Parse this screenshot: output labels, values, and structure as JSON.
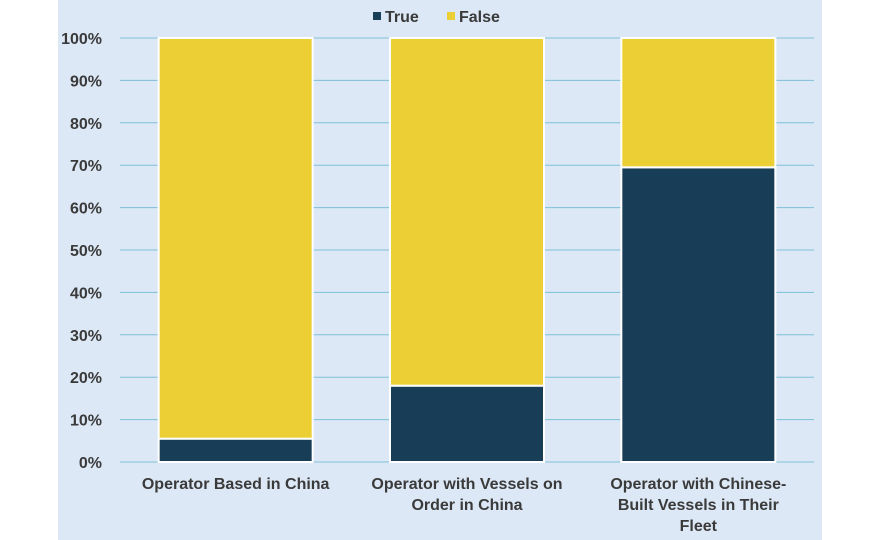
{
  "chart_data": {
    "type": "bar",
    "stacked": true,
    "title": "",
    "xlabel": "",
    "ylabel": "",
    "ylim": [
      0,
      100
    ],
    "y_ticks": [
      "0%",
      "10%",
      "20%",
      "30%",
      "40%",
      "50%",
      "60%",
      "70%",
      "80%",
      "90%",
      "100%"
    ],
    "categories": [
      "Operator Based in China",
      "Operator with Vessels on Order in China",
      "Operator with Chinese-Built Vessels in Their Fleet"
    ],
    "category_lines": [
      [
        "Operator Based in China"
      ],
      [
        "Operator with Vessels on",
        "Order in China"
      ],
      [
        "Operator with Chinese-",
        "Built Vessels in Their",
        "Fleet"
      ]
    ],
    "series": [
      {
        "name": "True",
        "values": [
          5.5,
          18,
          69.5
        ]
      },
      {
        "name": "False",
        "values": [
          94.5,
          82,
          30.5
        ]
      }
    ],
    "colors": {
      "True": "#173d57",
      "False": "#ecce35",
      "grid": "#7fbfd6",
      "background": "#dce8f5"
    },
    "legend": {
      "position": "top"
    },
    "grid": true
  }
}
